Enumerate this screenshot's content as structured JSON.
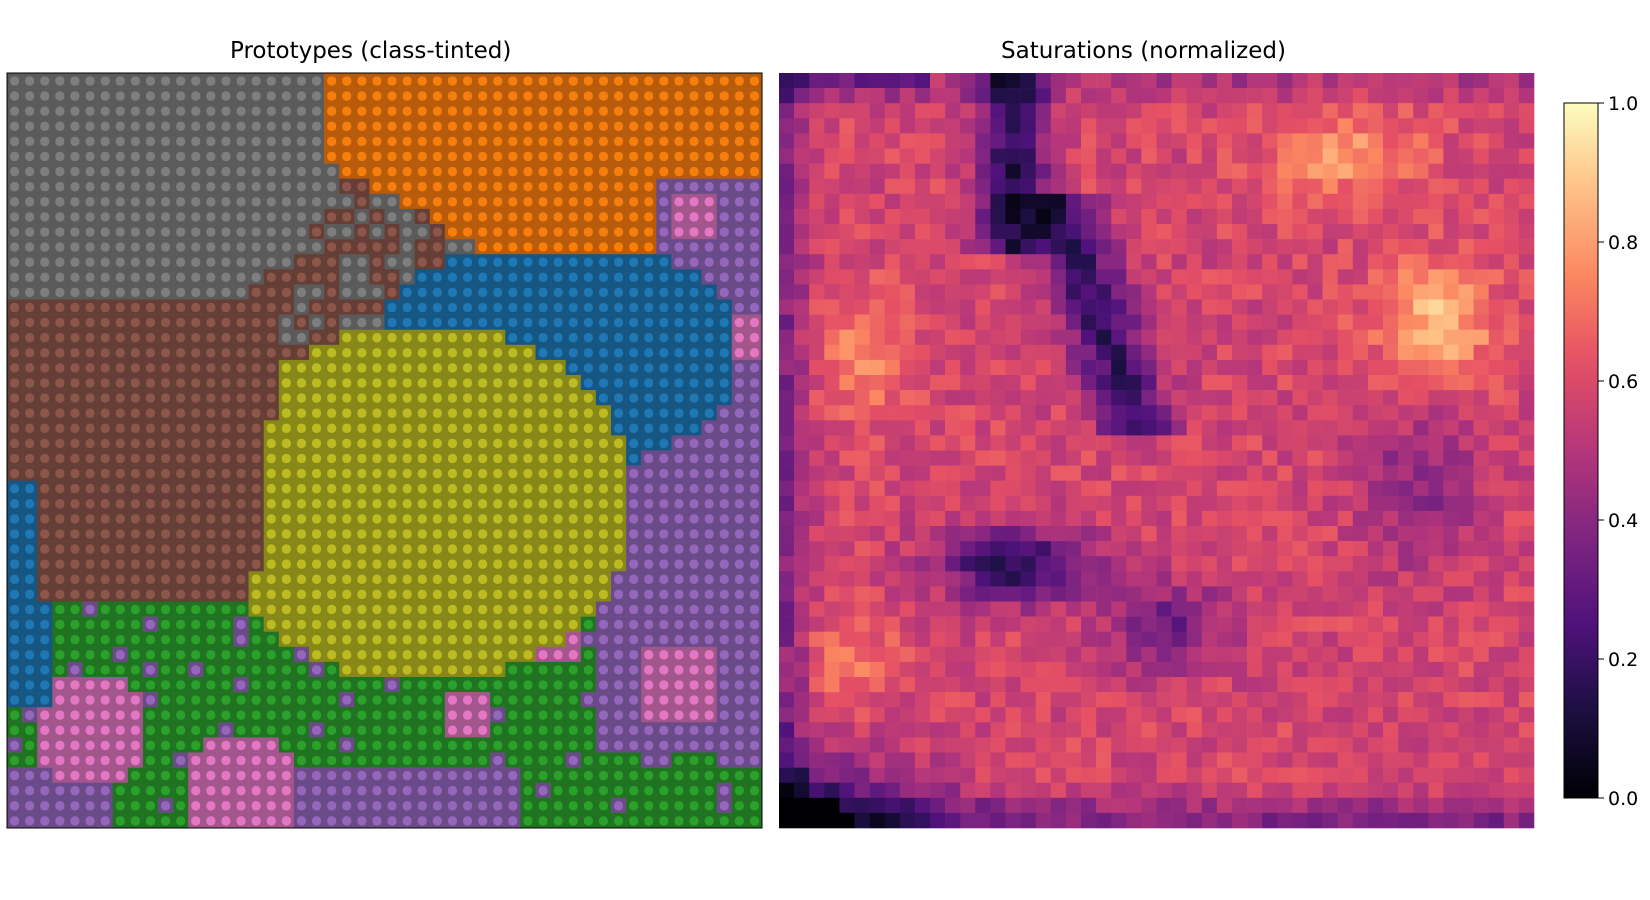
{
  "panels": {
    "left_title": "Prototypes (class-tinted)",
    "right_title": "Saturations (normalized)"
  },
  "chart_data": [
    {
      "type": "heatmap",
      "title": "Prototypes (class-tinted)",
      "grid": false,
      "grid_size": [
        50,
        50
      ],
      "class_colors": [
        "#7f7f7f",
        "#ff7f0e",
        "#1f77b4",
        "#8c564b",
        "#bcbd22",
        "#e377c2",
        "#9467bd",
        "#2ca02c"
      ],
      "class_regions_approx": [
        {
          "color": "#7f7f7f",
          "area": "top-left"
        },
        {
          "color": "#ff7f0e",
          "area": "top-right"
        },
        {
          "color": "#1f77b4",
          "area": "upper-right and lower-left edge"
        },
        {
          "color": "#8c564b",
          "area": "middle-left"
        },
        {
          "color": "#bcbd22",
          "area": "center"
        },
        {
          "color": "#e377c2",
          "area": "scattered patches"
        },
        {
          "color": "#9467bd",
          "area": "right and bottom"
        },
        {
          "color": "#2ca02c",
          "area": "bottom"
        }
      ]
    },
    {
      "type": "heatmap",
      "title": "Saturations (normalized)",
      "grid": false,
      "grid_size": [
        50,
        50
      ],
      "colormap": "magma",
      "value_range": [
        0.0,
        1.0
      ],
      "colorbar_ticks": [
        "0.0",
        "0.2",
        "0.4",
        "0.6",
        "0.8",
        "1.0"
      ],
      "features_approx": [
        {
          "area": "upper-center vertical band",
          "level": "dark"
        },
        {
          "area": "lower-center",
          "level": "dark"
        },
        {
          "area": "bottom-left corner",
          "level": "dark"
        },
        {
          "area": "upper-right",
          "level": "bright"
        }
      ]
    }
  ]
}
